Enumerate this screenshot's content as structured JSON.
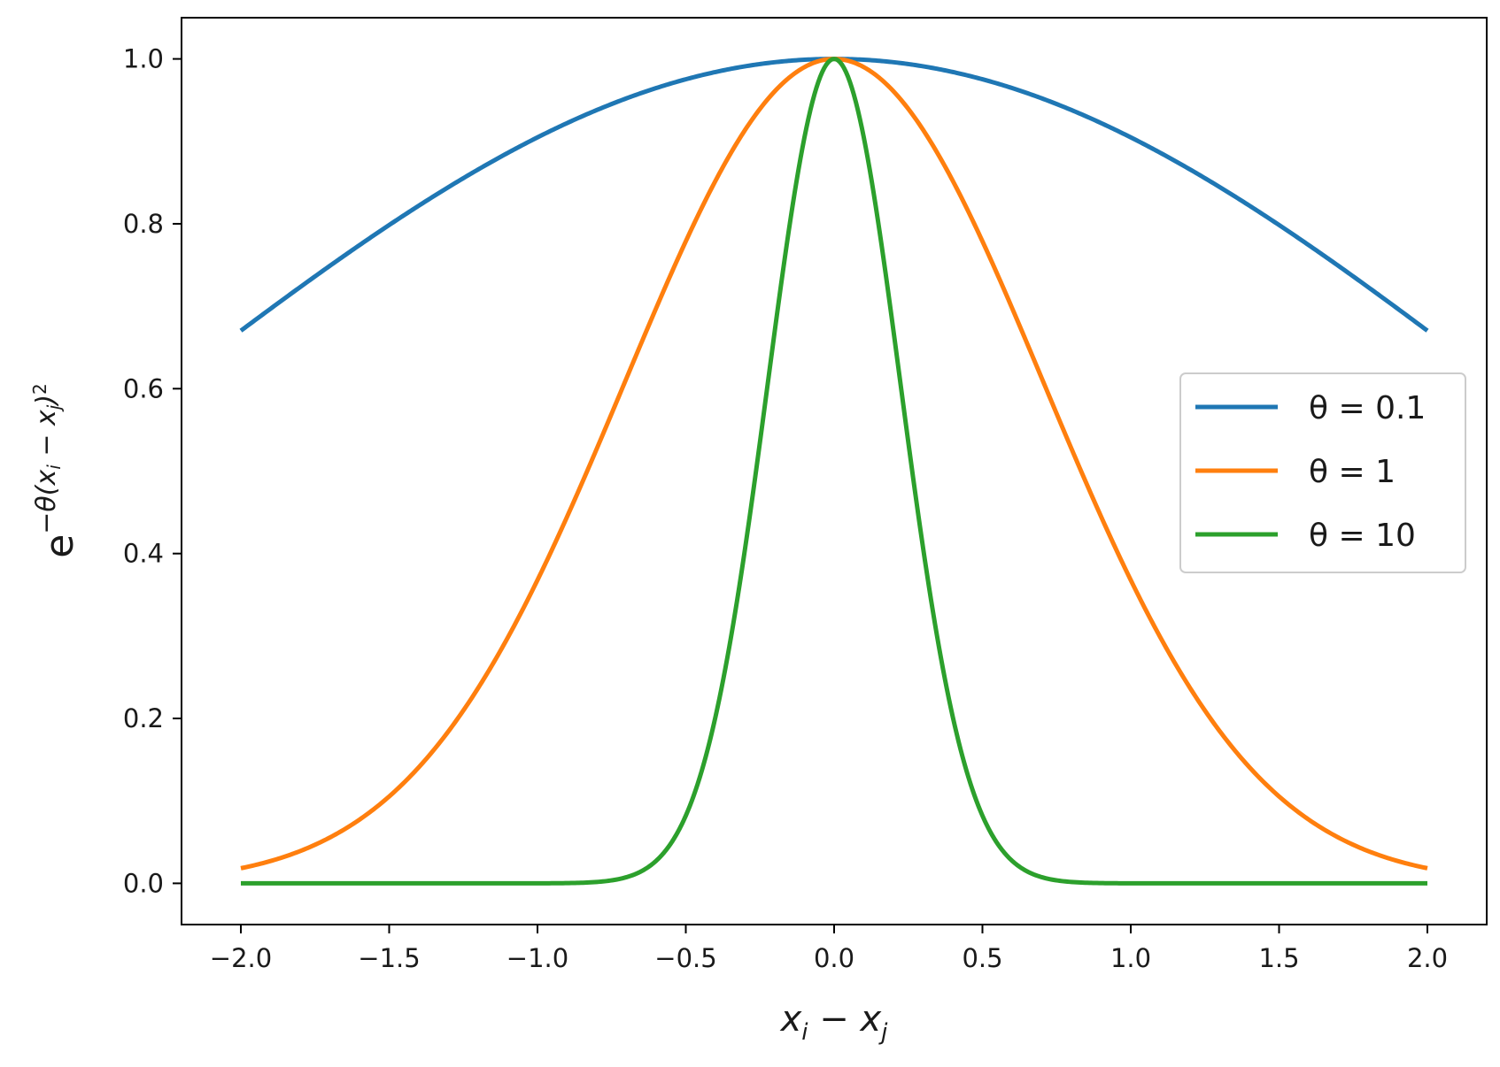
{
  "chart_data": {
    "type": "line",
    "xlabel": "x_i − x_j",
    "ylabel": "e^{−θ(x_i − x_j)^2}",
    "xlim": [
      -2.2,
      2.2
    ],
    "ylim": [
      -0.05,
      1.05
    ],
    "xticks": [
      -2.0,
      -1.5,
      -1.0,
      -0.5,
      0.0,
      0.5,
      1.0,
      1.5,
      2.0
    ],
    "xtick_labels": [
      "−2.0",
      "−1.5",
      "−1.0",
      "−0.5",
      "0.0",
      "0.5",
      "1.0",
      "1.5",
      "2.0"
    ],
    "yticks": [
      0.0,
      0.2,
      0.4,
      0.6,
      0.8,
      1.0
    ],
    "ytick_labels": [
      "0.0",
      "0.2",
      "0.4",
      "0.6",
      "0.8",
      "1.0"
    ],
    "grid": false,
    "legend_position": "center-right",
    "x": [
      -2.0,
      -1.5,
      -1.0,
      -0.75,
      -0.5,
      -0.25,
      0.0,
      0.25,
      0.5,
      0.75,
      1.0,
      1.5,
      2.0
    ],
    "series": [
      {
        "name": "θ = 0.1",
        "theta": 0.1,
        "color": "#1f77b4",
        "values": [
          0.67,
          0.799,
          0.905,
          0.945,
          0.975,
          0.994,
          1.0,
          0.994,
          0.975,
          0.945,
          0.905,
          0.799,
          0.67
        ]
      },
      {
        "name": "θ = 1",
        "theta": 1,
        "color": "#ff7f0e",
        "values": [
          0.018,
          0.105,
          0.368,
          0.57,
          0.779,
          0.939,
          1.0,
          0.939,
          0.779,
          0.57,
          0.368,
          0.105,
          0.018
        ]
      },
      {
        "name": "θ = 10",
        "theta": 10,
        "color": "#2ca02c",
        "values": [
          0.0,
          0.0,
          0.0,
          0.004,
          0.082,
          0.535,
          1.0,
          0.535,
          0.082,
          0.004,
          0.0,
          0.0,
          0.0
        ]
      }
    ]
  }
}
